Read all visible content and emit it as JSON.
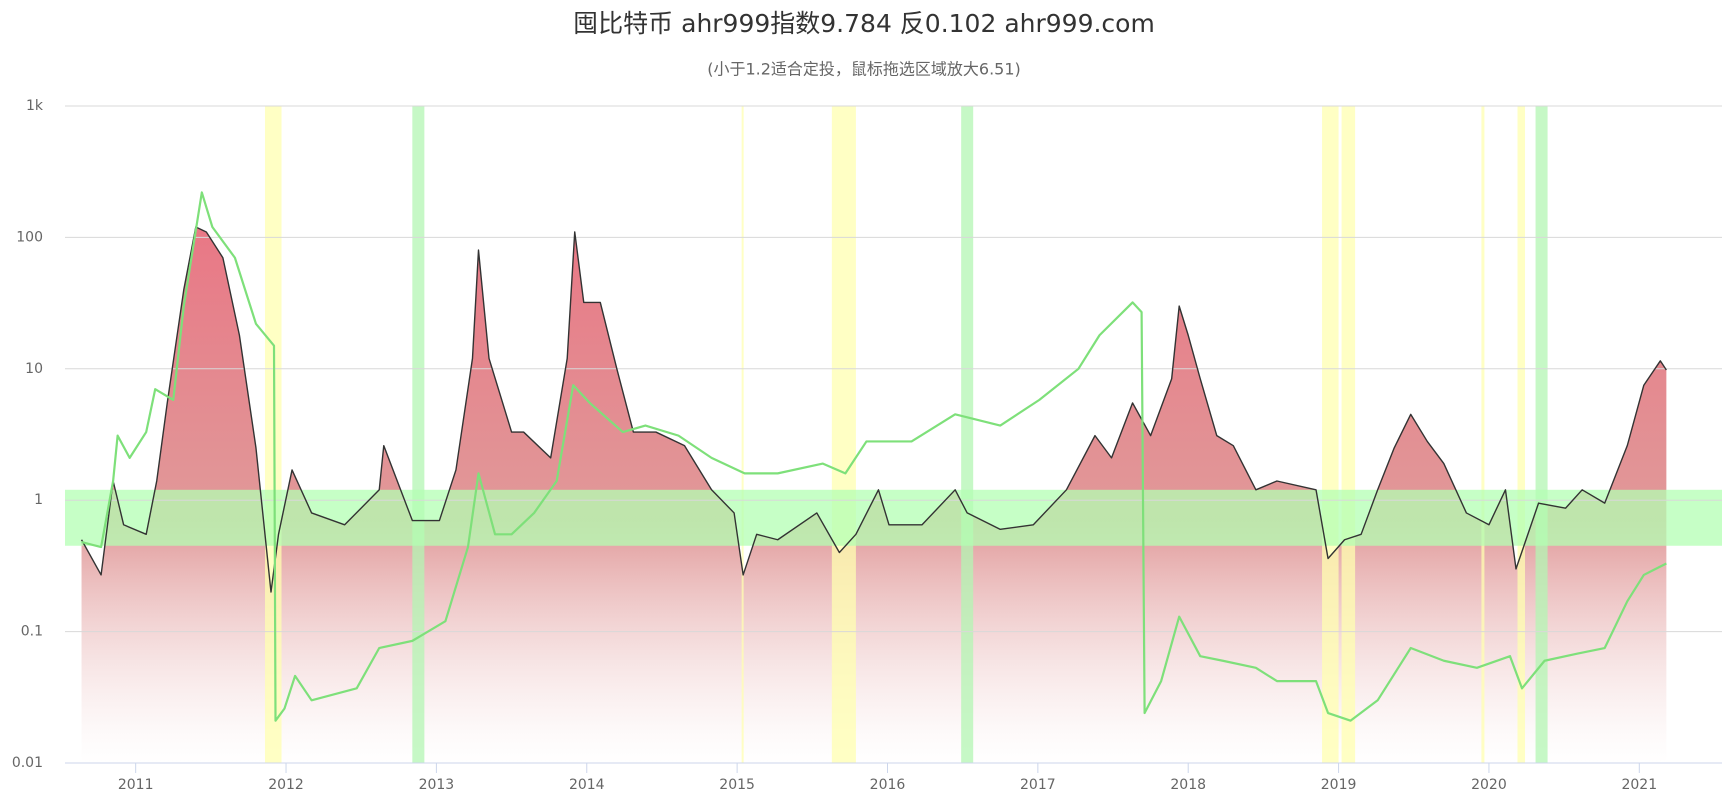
{
  "chart_data": {
    "type": "line",
    "title": "囤比特币 ahr999指数9.784 反0.102 ahr999.com",
    "subtitle": "(小于1.2适合定投，鼠标拖选区域放大6.51)",
    "log_scale": true,
    "grid": true,
    "xlim": [
      2010.53,
      2021.55
    ],
    "xticks": [
      2011,
      2012,
      2013,
      2014,
      2015,
      2016,
      2017,
      2018,
      2019,
      2020,
      2021
    ],
    "ylim": [
      0.01,
      1000
    ],
    "yticks": [
      0.01,
      0.1,
      1,
      10,
      100,
      {
        "value": 1000,
        "label": "1k"
      }
    ],
    "yband": {
      "from": 0.45,
      "to": 1.2,
      "color": "#b3ffb3"
    },
    "bands": [
      {
        "from": 2011.86,
        "to": 2011.97,
        "color": "#ffffb0"
      },
      {
        "from": 2012.84,
        "to": 2012.92,
        "color": "#b3f5b3"
      },
      {
        "from": 2015.03,
        "to": 2015.04,
        "color": "#ffffb0"
      },
      {
        "from": 2015.63,
        "to": 2015.79,
        "color": "#ffffb0"
      },
      {
        "from": 2016.49,
        "to": 2016.57,
        "color": "#b3f5b3"
      },
      {
        "from": 2018.89,
        "to": 2019.0,
        "color": "#ffffb0"
      },
      {
        "from": 2019.02,
        "to": 2019.11,
        "color": "#ffffb0"
      },
      {
        "from": 2019.95,
        "to": 2019.97,
        "color": "#ffffb0"
      },
      {
        "from": 2020.19,
        "to": 2020.24,
        "color": "#ffffb0"
      },
      {
        "from": 2020.31,
        "to": 2020.39,
        "color": "#b3f5b3"
      }
    ],
    "series": [
      {
        "color": "#333333",
        "area": true,
        "x": [
          2010.64,
          2010.77,
          2010.85,
          2010.92,
          2011.07,
          2011.14,
          2011.21,
          2011.32,
          2011.4,
          2011.47,
          2011.58,
          2011.69,
          2011.8,
          2011.9,
          2011.95,
          2012.04,
          2012.17,
          2012.39,
          2012.62,
          2012.65,
          2012.84,
          2013.02,
          2013.13,
          2013.24,
          2013.28,
          2013.35,
          2013.5,
          2013.58,
          2013.76,
          2013.87,
          2013.92,
          2013.98,
          2014.09,
          2014.2,
          2014.31,
          2014.46,
          2014.65,
          2014.83,
          2014.98,
          2015.04,
          2015.13,
          2015.27,
          2015.53,
          2015.68,
          2015.79,
          2015.94,
          2016.01,
          2016.23,
          2016.45,
          2016.53,
          2016.75,
          2016.97,
          2017.19,
          2017.38,
          2017.49,
          2017.63,
          2017.75,
          2017.89,
          2017.94,
          2018.0,
          2018.08,
          2018.19,
          2018.3,
          2018.45,
          2018.59,
          2018.85,
          2018.93,
          2019.04,
          2019.15,
          2019.26,
          2019.37,
          2019.48,
          2019.59,
          2019.7,
          2019.85,
          2020.0,
          2020.11,
          2020.18,
          2020.33,
          2020.51,
          2020.62,
          2020.77,
          2020.92,
          2021.03,
          2021.14,
          2021.18
        ],
        "values": [
          0.5,
          0.27,
          1.4,
          0.65,
          0.55,
          1.4,
          5.5,
          40,
          120,
          110,
          70,
          18,
          2.5,
          0.2,
          0.55,
          1.7,
          0.8,
          0.65,
          1.2,
          2.6,
          0.7,
          0.7,
          1.7,
          12,
          80,
          12,
          3.3,
          3.3,
          2.1,
          12,
          110,
          32,
          32,
          10,
          3.3,
          3.3,
          2.6,
          1.2,
          0.8,
          0.27,
          0.55,
          0.5,
          0.8,
          0.4,
          0.55,
          1.2,
          0.65,
          0.65,
          1.2,
          0.8,
          0.6,
          0.65,
          1.2,
          3.1,
          2.1,
          5.5,
          3.1,
          8.4,
          30,
          18,
          8.4,
          3.1,
          2.6,
          1.2,
          1.4,
          1.2,
          0.36,
          0.5,
          0.55,
          1.2,
          2.5,
          4.5,
          2.8,
          1.9,
          0.8,
          0.65,
          1.2,
          0.3,
          0.95,
          0.87,
          1.2,
          0.95,
          2.6,
          7.5,
          11.5,
          9.784
        ]
      },
      {
        "color": "#7ee07a",
        "area": false,
        "x": [
          2010.64,
          2010.77,
          2010.85,
          2010.88,
          2010.96,
          2011.07,
          2011.13,
          2011.25,
          2011.32,
          2011.44,
          2011.51,
          2011.66,
          2011.8,
          2011.92,
          2011.93,
          2011.99,
          2012.06,
          2012.17,
          2012.47,
          2012.62,
          2012.84,
          2013.06,
          2013.21,
          2013.28,
          2013.39,
          2013.5,
          2013.65,
          2013.8,
          2013.91,
          2014.02,
          2014.24,
          2014.39,
          2014.61,
          2014.83,
          2015.05,
          2015.27,
          2015.57,
          2015.72,
          2015.86,
          2016.16,
          2016.45,
          2016.75,
          2017.01,
          2017.27,
          2017.41,
          2017.63,
          2017.69,
          2017.71,
          2017.82,
          2017.94,
          2018.08,
          2018.23,
          2018.45,
          2018.59,
          2018.85,
          2018.93,
          2019.08,
          2019.26,
          2019.48,
          2019.7,
          2019.92,
          2020.14,
          2020.22,
          2020.37,
          2020.59,
          2020.77,
          2020.92,
          2021.03,
          2021.18
        ],
        "values": [
          0.48,
          0.44,
          1.4,
          3.1,
          2.1,
          3.3,
          7,
          5.8,
          30,
          220,
          120,
          70,
          22,
          15,
          0.021,
          0.026,
          0.046,
          0.03,
          0.037,
          0.075,
          0.085,
          0.12,
          0.44,
          1.6,
          0.55,
          0.55,
          0.8,
          1.4,
          7.5,
          5.5,
          3.3,
          3.7,
          3.1,
          2.1,
          1.6,
          1.6,
          1.9,
          1.6,
          2.8,
          2.8,
          4.5,
          3.7,
          5.8,
          10,
          18,
          32,
          27,
          0.024,
          0.042,
          0.13,
          0.065,
          0.06,
          0.053,
          0.042,
          0.042,
          0.024,
          0.021,
          0.03,
          0.075,
          0.06,
          0.053,
          0.065,
          0.037,
          0.06,
          0.068,
          0.075,
          0.17,
          0.27,
          0.33
        ]
      }
    ]
  }
}
